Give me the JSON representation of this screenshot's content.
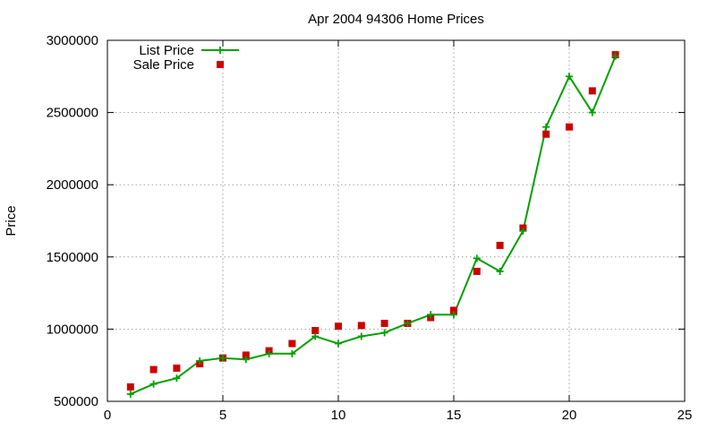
{
  "chart_data": {
    "type": "line",
    "title": "Apr 2004 94306 Home Prices",
    "xlabel": "",
    "ylabel": "Price",
    "xlim": [
      0,
      25
    ],
    "ylim": [
      500000,
      3000000
    ],
    "x_ticks": [
      0,
      5,
      10,
      15,
      20,
      25
    ],
    "y_ticks": [
      500000,
      1000000,
      1500000,
      2000000,
      2500000,
      3000000
    ],
    "x_tick_labels": [
      "0",
      "5",
      "10",
      "15",
      "20",
      "25"
    ],
    "y_tick_labels": [
      "500000",
      "1000000",
      "1500000",
      "2000000",
      "2500000",
      "3000000"
    ],
    "grid": true,
    "legend_position": "top-left",
    "x": [
      1,
      2,
      3,
      4,
      5,
      6,
      7,
      8,
      9,
      10,
      11,
      12,
      13,
      14,
      15,
      16,
      17,
      18,
      19,
      20,
      21,
      22
    ],
    "series": [
      {
        "name": "List Price",
        "style": "line-points",
        "color": "#00a000",
        "values": [
          550000,
          620000,
          660000,
          780000,
          800000,
          790000,
          830000,
          830000,
          950000,
          900000,
          950000,
          975000,
          1040000,
          1100000,
          1100000,
          1490000,
          1400000,
          1680000,
          2400000,
          2750000,
          2500000,
          2890000
        ]
      },
      {
        "name": "Sale Price",
        "style": "points",
        "color": "#cc0000",
        "values": [
          600000,
          720000,
          730000,
          760000,
          800000,
          820000,
          850000,
          900000,
          990000,
          1020000,
          1025000,
          1040000,
          1040000,
          1080000,
          1130000,
          1400000,
          1580000,
          1700000,
          2350000,
          2400000,
          2650000,
          2900000
        ]
      }
    ]
  }
}
